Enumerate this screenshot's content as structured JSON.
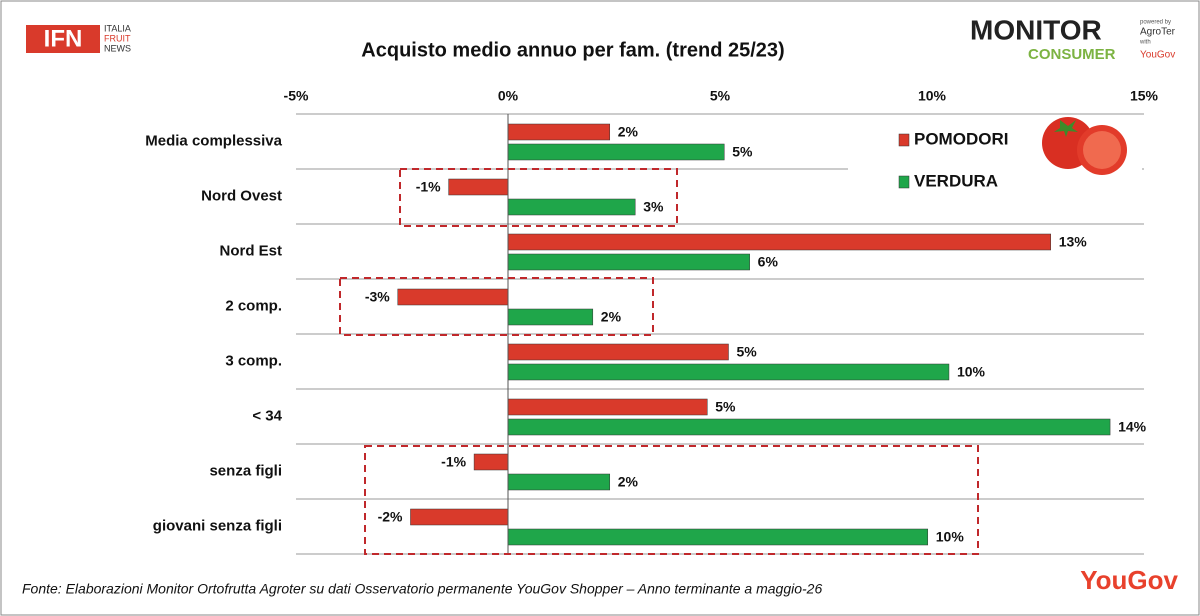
{
  "header": {
    "logo_left": "IFN",
    "logo_left_sub": [
      "ITALIA",
      "FRUIT",
      "NEWS"
    ],
    "logo_right": [
      "MONITOR",
      "CONSUMER"
    ],
    "logo_right_sub": [
      "powered by",
      "AgroTer",
      "with",
      "YouGov"
    ]
  },
  "chart_data": {
    "type": "hbar",
    "title": "Acquisto medio annuo per fam. (trend 25/23)",
    "categories": [
      "Media complessiva",
      "Nord Ovest",
      "Nord Est",
      "2 comp.",
      "3 comp.",
      "< 34",
      "senza figli",
      "giovani senza figli"
    ],
    "series": [
      {
        "name": "POMODORI",
        "color": "#d93a2b",
        "values": [
          2.4,
          -1.4,
          12.8,
          -2.6,
          5.2,
          4.7,
          -0.8,
          -2.3
        ],
        "value_labels": [
          "2%",
          "-1%",
          "13%",
          "-3%",
          "5%",
          "5%",
          "-1%",
          "-2%"
        ]
      },
      {
        "name": "VERDURA",
        "color": "#1fa64a",
        "values": [
          5.1,
          3.0,
          5.7,
          2.0,
          10.4,
          14.2,
          2.4,
          9.9
        ],
        "value_labels": [
          "5%",
          "3%",
          "6%",
          "2%",
          "10%",
          "14%",
          "2%",
          "10%"
        ]
      }
    ],
    "xlim": [
      -5,
      15
    ],
    "xticks": [
      {
        "value": -5,
        "label": "-5%"
      },
      {
        "value": 0,
        "label": "0%"
      },
      {
        "value": 5,
        "label": "5%"
      },
      {
        "value": 10,
        "label": "10%"
      },
      {
        "value": 15,
        "label": "15%"
      }
    ],
    "grid": false,
    "legend": "top-right"
  },
  "footer": {
    "source": "Fonte: Elaborazioni Monitor Ortofrutta Agroter su dati Osservatorio permanente YouGov Shopper – Anno terminante a maggio-26",
    "brand": "YouGov"
  }
}
